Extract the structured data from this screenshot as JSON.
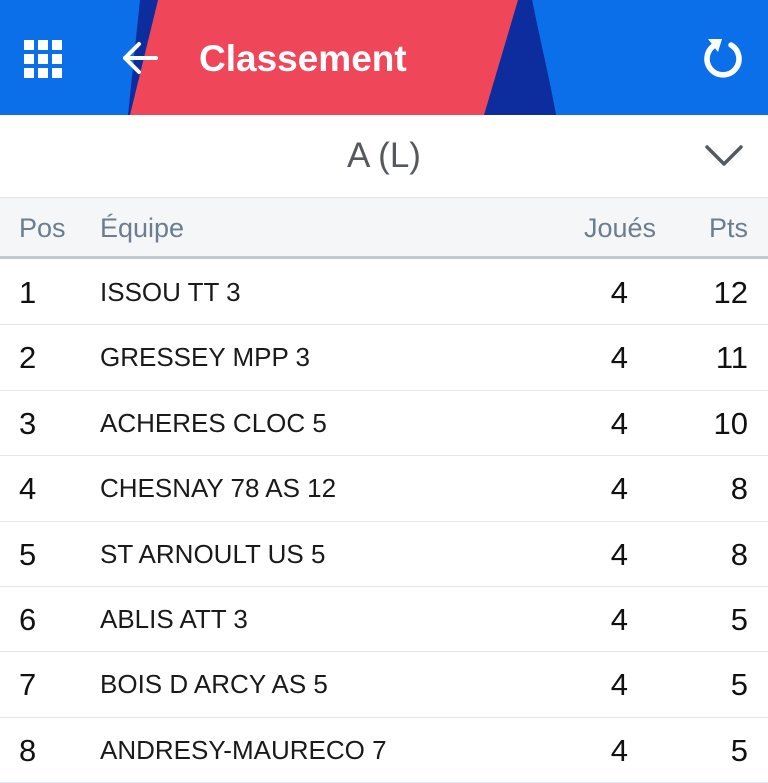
{
  "appbar": {
    "title": "Classement",
    "icons": {
      "menu": "grid-icon",
      "back": "arrow-left-icon",
      "refresh": "refresh-icon"
    },
    "colors": {
      "background": "#0a6fe8",
      "accent_red": "#f0465a",
      "accent_navy": "#0d2c9e"
    }
  },
  "selector": {
    "label": "A (L)",
    "icon": "chevron-down-icon"
  },
  "table": {
    "headers": {
      "pos": "Pos",
      "team": "Équipe",
      "played": "Joués",
      "pts": "Pts"
    },
    "rows": [
      {
        "pos": "1",
        "team": "ISSOU TT 3",
        "played": "4",
        "pts": "12"
      },
      {
        "pos": "2",
        "team": "GRESSEY MPP 3",
        "played": "4",
        "pts": "11"
      },
      {
        "pos": "3",
        "team": "ACHERES CLOC 5",
        "played": "4",
        "pts": "10"
      },
      {
        "pos": "4",
        "team": "CHESNAY 78 AS 12",
        "played": "4",
        "pts": "8"
      },
      {
        "pos": "5",
        "team": "ST ARNOULT US 5",
        "played": "4",
        "pts": "8"
      },
      {
        "pos": "6",
        "team": "ABLIS ATT 3",
        "played": "4",
        "pts": "5"
      },
      {
        "pos": "7",
        "team": "BOIS D ARCY AS 5",
        "played": "4",
        "pts": "5"
      },
      {
        "pos": "8",
        "team": "ANDRESY-MAURECO 7",
        "played": "4",
        "pts": "5"
      }
    ]
  }
}
